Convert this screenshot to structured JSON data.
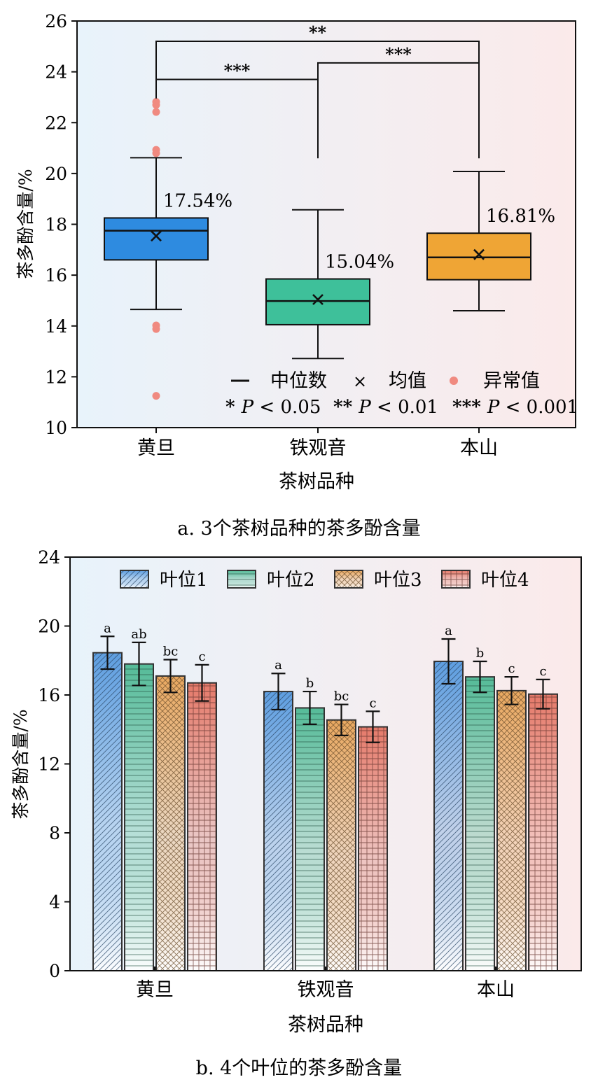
{
  "chart_data": [
    {
      "type": "box",
      "caption": "a. 3个茶树品种的茶多酚含量",
      "xlabel": "茶树品种",
      "ylabel": "茶多酚含量/%",
      "ylim": [
        10,
        26
      ],
      "yticks": [
        10,
        12,
        14,
        16,
        18,
        20,
        22,
        24,
        26
      ],
      "categories": [
        "黄旦",
        "铁观音",
        "本山"
      ],
      "boxes": [
        {
          "category": "黄旦",
          "color": "#2e8be0",
          "whisker_low": 14.65,
          "q1": 16.6,
          "median": 17.75,
          "q3": 18.25,
          "whisker_high": 20.62,
          "mean": 17.54,
          "mean_label": "17.54%",
          "outliers": [
            22.82,
            22.7,
            22.42,
            20.93,
            20.8,
            14.02,
            13.88,
            11.25
          ]
        },
        {
          "category": "铁观音",
          "color": "#3ec09a",
          "whisker_low": 12.72,
          "q1": 14.05,
          "median": 14.98,
          "q3": 15.85,
          "whisker_high": 18.57,
          "mean": 15.04,
          "mean_label": "15.04%",
          "outliers": []
        },
        {
          "category": "本山",
          "color": "#efa535",
          "whisker_low": 14.6,
          "q1": 15.82,
          "median": 16.7,
          "q3": 17.65,
          "whisker_high": 20.08,
          "mean": 16.81,
          "mean_label": "16.81%",
          "outliers": []
        }
      ],
      "significance": [
        {
          "from": "黄旦",
          "to": "本山",
          "label": "**"
        },
        {
          "from": "铁观音",
          "to": "本山",
          "label": "***"
        },
        {
          "from": "黄旦",
          "to": "铁观音",
          "label": "***"
        }
      ],
      "legend": {
        "items": [
          {
            "symbol": "—",
            "label": "中位数"
          },
          {
            "symbol": "×",
            "label": "均值"
          },
          {
            "symbol": "●",
            "label": "异常值"
          }
        ],
        "p_items": [
          {
            "stars": "*",
            "p": "P",
            "rest": " < 0.05"
          },
          {
            "stars": "**",
            "p": "P",
            "rest": " < 0.01"
          },
          {
            "stars": "***",
            "p": "P",
            "rest": " < 0.001"
          }
        ]
      },
      "background_colors": [
        "#e8f3fb",
        "#fbeaea"
      ],
      "outlier_color": "#f08a80"
    },
    {
      "type": "bar",
      "caption": "b. 4个叶位的茶多酚含量",
      "xlabel": "茶树品种",
      "ylabel": "茶多酚含量/%",
      "ylim": [
        0,
        24
      ],
      "yticks": [
        0,
        4,
        8,
        12,
        16,
        20,
        24
      ],
      "categories": [
        "黄旦",
        "铁观音",
        "本山"
      ],
      "series": [
        {
          "name": "叶位1",
          "color": "#5e9ee0",
          "pattern": "diagonal",
          "values": [
            18.45,
            16.2,
            17.95
          ],
          "errors": [
            0.95,
            1.05,
            1.3
          ],
          "letters": [
            "a",
            "a",
            "a"
          ]
        },
        {
          "name": "叶位2",
          "color": "#55bb98",
          "pattern": "horizontal",
          "values": [
            17.8,
            15.25,
            17.05
          ],
          "errors": [
            1.25,
            0.95,
            0.9
          ],
          "letters": [
            "ab",
            "b",
            "b"
          ]
        },
        {
          "name": "叶位3",
          "color": "#e9a860",
          "pattern": "crosshatch",
          "values": [
            17.1,
            14.55,
            16.25
          ],
          "errors": [
            0.95,
            0.9,
            0.8
          ],
          "letters": [
            "bc",
            "bc",
            "c"
          ]
        },
        {
          "name": "叶位4",
          "color": "#e57a6a",
          "pattern": "grid",
          "values": [
            16.7,
            14.15,
            16.05
          ],
          "errors": [
            1.05,
            0.9,
            0.85
          ],
          "letters": [
            "c",
            "c",
            "c"
          ]
        }
      ],
      "background_colors": [
        "#e8f3fb",
        "#fbeaea"
      ]
    }
  ]
}
